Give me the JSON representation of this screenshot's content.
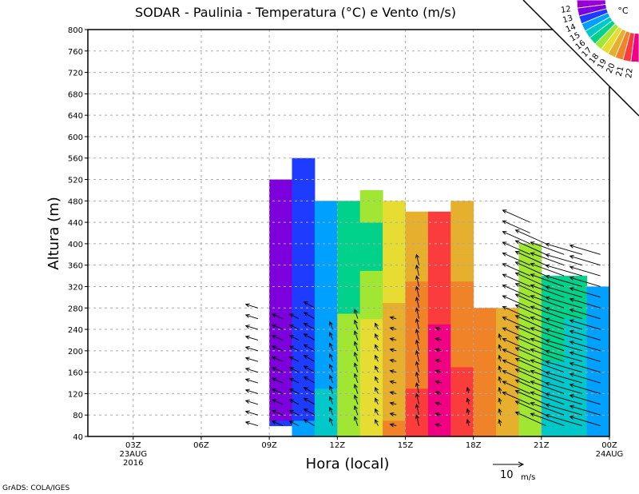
{
  "chart_data": {
    "type": "heatmap",
    "title": "SODAR - Paulinia - Temperatura (°C) e Vento (m/s)",
    "xlabel": "Hora (local)",
    "ylabel": "Altura (m)",
    "xlim": [
      1,
      24
    ],
    "ylim": [
      40,
      800
    ],
    "grid": true,
    "x_ticks": [
      {
        "t": 3,
        "label": "03Z",
        "sub1": "23AUG",
        "sub2": "2016"
      },
      {
        "t": 6,
        "label": "06Z"
      },
      {
        "t": 9,
        "label": "09Z"
      },
      {
        "t": 12,
        "label": "12Z"
      },
      {
        "t": 15,
        "label": "15Z"
      },
      {
        "t": 18,
        "label": "18Z"
      },
      {
        "t": 21,
        "label": "21Z"
      },
      {
        "t": 24,
        "label": "00Z",
        "sub1": "24AUG"
      }
    ],
    "y_ticks": [
      40,
      80,
      120,
      160,
      200,
      240,
      280,
      320,
      360,
      400,
      440,
      480,
      520,
      560,
      600,
      640,
      680,
      720,
      760,
      800
    ],
    "colorbar": {
      "unit": "°C",
      "position": "top-right",
      "levels": [
        12,
        13,
        14,
        15,
        16,
        17,
        18,
        19,
        20,
        21,
        22
      ],
      "colors": [
        "#9600d2",
        "#7d00dc",
        "#1e3cff",
        "#00a0ff",
        "#00c8c8",
        "#00d28c",
        "#a0e632",
        "#e6dc32",
        "#e6af2d",
        "#f08228",
        "#fa3c3c",
        "#f00082"
      ]
    },
    "temperature_columns": [
      {
        "t": 9,
        "bottom": 60,
        "top": 520,
        "values": [
          13.2,
          12.8,
          12.6,
          12.5,
          12.5,
          12.5,
          12.5,
          12.5,
          12.5,
          12.5,
          12.5,
          12.5
        ]
      },
      {
        "t": 10,
        "bottom": 40,
        "top": 560,
        "values": [
          14.2,
          13.8,
          13.6,
          13.5,
          13.5,
          13.5,
          13.5,
          13.5,
          13.5,
          13.5,
          13.5,
          13.5,
          13.5
        ]
      },
      {
        "t": 11,
        "bottom": 40,
        "top": 480,
        "values": [
          15.5,
          15.2,
          15.0,
          14.8,
          14.6,
          14.5,
          14.5,
          14.5,
          14.3,
          14.3,
          14.5
        ]
      },
      {
        "t": 12,
        "bottom": 40,
        "top": 480,
        "values": [
          17.8,
          17.5,
          17.3,
          17.2,
          17.5,
          17.5,
          16.5,
          16.3,
          16.5,
          16.5,
          16.3
        ]
      },
      {
        "t": 13,
        "bottom": 40,
        "top": 500,
        "values": [
          18.5,
          18.5,
          18.5,
          18.3,
          18.3,
          18.2,
          17.5,
          17.5,
          16.8,
          16.5,
          17.0,
          17.0
        ]
      },
      {
        "t": 14,
        "bottom": 40,
        "top": 480,
        "values": [
          20.3,
          19.8,
          19.5,
          19.5,
          19.3,
          19.2,
          19.0,
          18.7,
          18.5,
          18.3,
          18.2
        ]
      },
      {
        "t": 15,
        "bottom": 40,
        "top": 460,
        "values": [
          21.5,
          21.3,
          21.0,
          20.5,
          20.5,
          20.3,
          20.2,
          20.0,
          19.5,
          19.5,
          19.5
        ]
      },
      {
        "t": 16,
        "bottom": 40,
        "top": 460,
        "values": [
          22.5,
          22.5,
          22.5,
          22.3,
          22.2,
          22.0,
          21.8,
          21.5,
          21.3,
          21.0,
          21.0
        ]
      },
      {
        "t": 17,
        "bottom": 40,
        "top": 480,
        "values": [
          21.5,
          21.5,
          21.3,
          21.0,
          20.8,
          20.5,
          20.3,
          20.0,
          19.5,
          19.5,
          19.5
        ]
      },
      {
        "t": 18,
        "bottom": 40,
        "top": 280,
        "values": [
          20.5,
          20.5,
          20.3,
          20.2,
          20.0,
          20.5
        ]
      },
      {
        "t": 19,
        "bottom": 40,
        "top": 280,
        "values": [
          19.5,
          19.5,
          19.3,
          19.2,
          19.0,
          19.0
        ]
      },
      {
        "t": 20,
        "bottom": 40,
        "top": 400,
        "values": [
          17.5,
          17.5,
          17.3,
          17.2,
          17.5,
          17.5,
          17.5,
          17.5,
          17.5
        ]
      },
      {
        "t": 21,
        "bottom": 40,
        "top": 340,
        "values": [
          15.5,
          15.5,
          15.6,
          15.8,
          16.2,
          16.5,
          16.5,
          16.8
        ]
      },
      {
        "t": 22,
        "bottom": 40,
        "top": 340,
        "values": [
          15.2,
          15.2,
          15.3,
          15.4,
          15.5,
          15.8,
          16.2,
          16.5
        ]
      },
      {
        "t": 23,
        "bottom": 40,
        "top": 320,
        "values": [
          14.5,
          14.3,
          14.2,
          14.3,
          14.5,
          14.5,
          14.8
        ]
      }
    ],
    "wind_columns": [
      {
        "t": 8.5,
        "from": 60,
        "to": 280,
        "u": -4,
        "v": 1.2
      },
      {
        "t": 9.6,
        "from": 60,
        "to": 260,
        "u": -3.5,
        "v": 1.5
      },
      {
        "t": 10.3,
        "from": 60,
        "to": 270,
        "u": -3,
        "v": 1.5
      },
      {
        "t": 11.0,
        "from": 60,
        "to": 280,
        "u": -3.5,
        "v": 2
      },
      {
        "t": 11.8,
        "from": 60,
        "to": 250,
        "u": -1,
        "v": 2.5
      },
      {
        "t": 12.9,
        "from": 60,
        "to": 260,
        "u": -1,
        "v": 3
      },
      {
        "t": 13.8,
        "from": 60,
        "to": 250,
        "u": -1,
        "v": 2
      },
      {
        "t": 14.6,
        "from": 60,
        "to": 260,
        "u": -2,
        "v": 0.5
      },
      {
        "t": 15.6,
        "from": 60,
        "to": 370,
        "u": -0.8,
        "v": 3.5
      },
      {
        "t": 16.6,
        "from": 60,
        "to": 250,
        "u": -2,
        "v": 0.5
      },
      {
        "t": 17.8,
        "from": 60,
        "to": 120,
        "u": -0.5,
        "v": 2
      },
      {
        "t": 19.2,
        "from": 60,
        "to": 220,
        "u": -0.5,
        "v": 2
      },
      {
        "t": 20.5,
        "from": 100,
        "to": 440,
        "u": -9,
        "v": 4
      },
      {
        "t": 21.2,
        "from": 60,
        "to": 400,
        "u": -10,
        "v": 4.5
      },
      {
        "t": 22.0,
        "from": 60,
        "to": 390,
        "u": -11,
        "v": 4
      },
      {
        "t": 22.8,
        "from": 60,
        "to": 390,
        "u": -12,
        "v": 3.5
      },
      {
        "t": 23.6,
        "from": 60,
        "to": 390,
        "u": -10,
        "v": 3
      }
    ],
    "reference_vector": {
      "speed": 10,
      "label": "10",
      "unit": "m/s"
    }
  },
  "footer": {
    "credit": "GrADS: COLA/IGES"
  }
}
